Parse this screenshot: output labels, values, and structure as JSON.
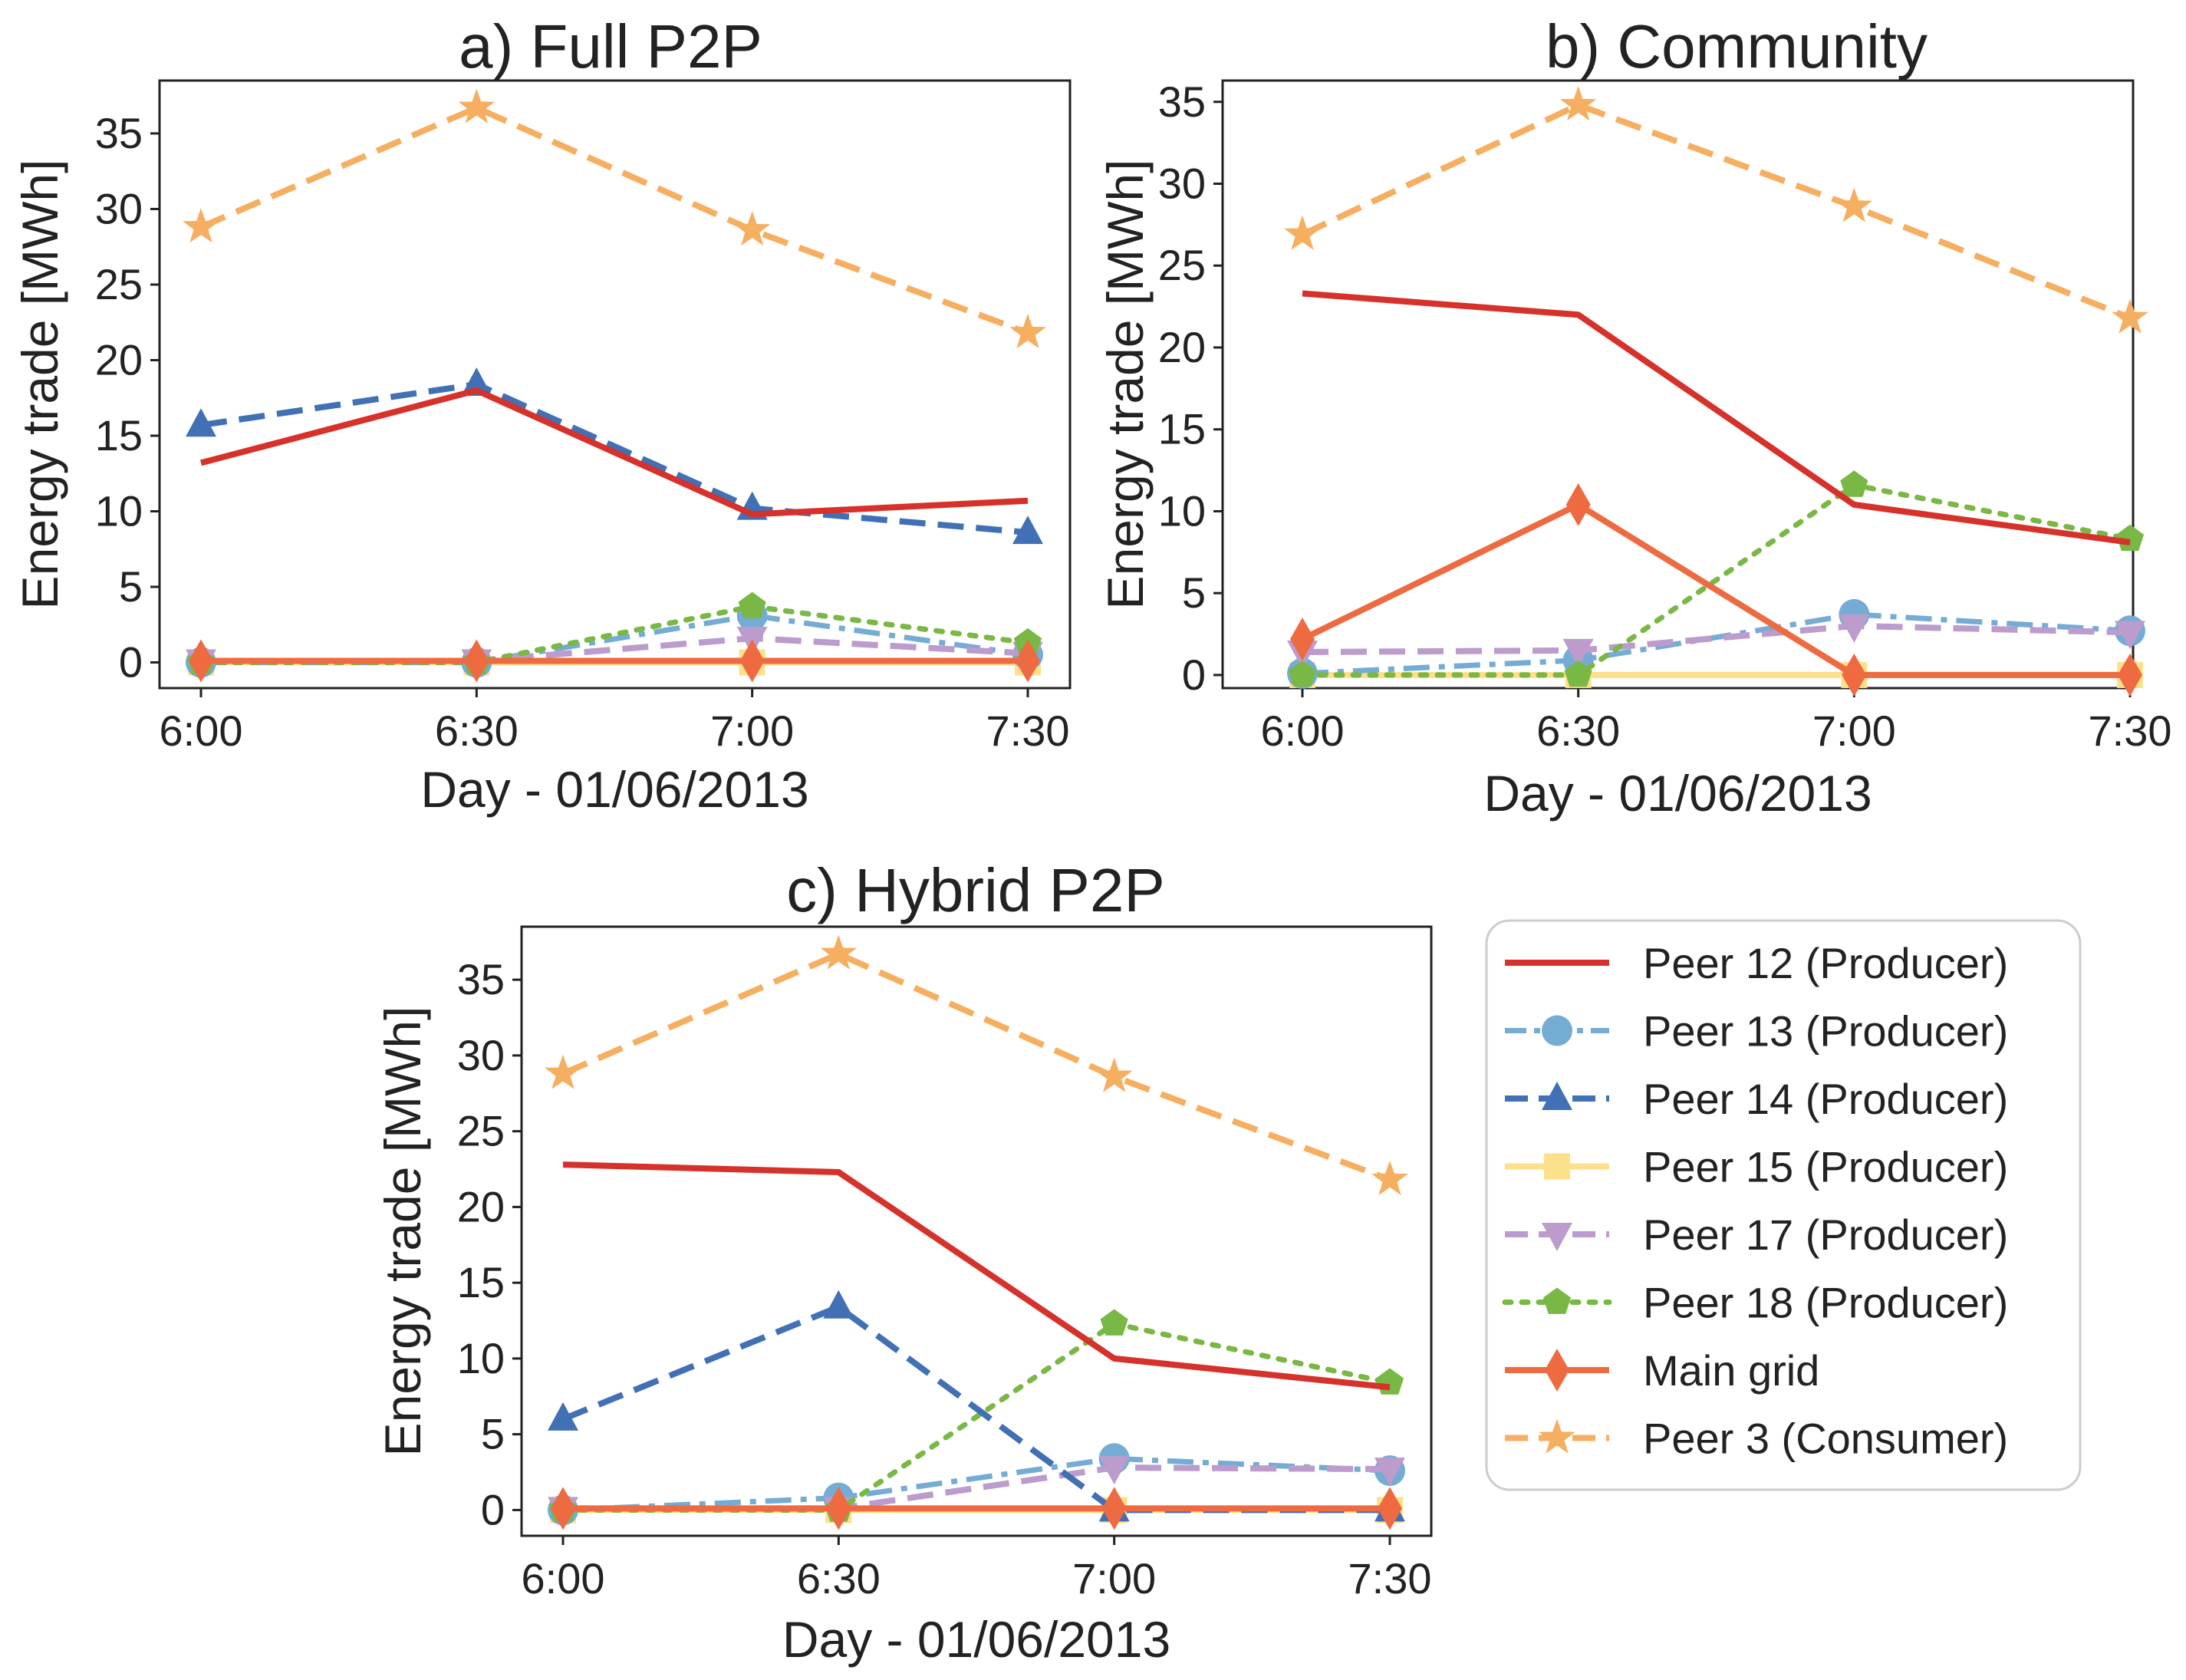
{
  "figure": {
    "legend_position": "bottom-right",
    "legend_border_color": "#cccccc"
  },
  "series_styles": [
    {
      "key": "p12",
      "name": "Peer 12 (Producer)",
      "color": "#d6312b",
      "dash": "solid",
      "marker": "none",
      "width": 8
    },
    {
      "key": "p13",
      "name": "Peer 13 (Producer)",
      "color": "#74acd4",
      "dash": "dashdot",
      "marker": "circle",
      "width": 7
    },
    {
      "key": "p14",
      "name": "Peer 14 (Producer)",
      "color": "#4170b5",
      "dash": "dashed",
      "marker": "triangle-up",
      "width": 8
    },
    {
      "key": "p15",
      "name": "Peer 15 (Producer)",
      "color": "#fde08b",
      "dash": "solid",
      "marker": "square",
      "width": 8
    },
    {
      "key": "p17",
      "name": "Peer 17 (Producer)",
      "color": "#bb9ccc",
      "dash": "dashed",
      "marker": "triangle-down",
      "width": 8
    },
    {
      "key": "p18",
      "name": "Peer 18 (Producer)",
      "color": "#79b844",
      "dash": "dotted",
      "marker": "pentagon",
      "width": 7
    },
    {
      "key": "grid",
      "name": "Main grid",
      "color": "#ee6a41",
      "dash": "solid",
      "marker": "diamond",
      "width": 8
    },
    {
      "key": "p3",
      "name": "Peer 3 (Consumer)",
      "color": "#f6ae60",
      "dash": "dashed",
      "marker": "star",
      "width": 8
    }
  ],
  "chart_data": [
    {
      "type": "line",
      "title": "a) Full P2P",
      "xlabel": "Day - 01/06/2013",
      "ylabel": "Energy trade [MWh]",
      "categories": [
        "6:00",
        "6:30",
        "7:00",
        "7:30"
      ],
      "ylim": [
        -1.7,
        38.5
      ],
      "yticks": [
        0,
        5,
        10,
        15,
        20,
        25,
        30,
        35
      ],
      "series": [
        {
          "key": "p15",
          "name": "Peer 15 (Producer)",
          "values": [
            0,
            0,
            0,
            0
          ]
        },
        {
          "key": "p13",
          "name": "Peer 13 (Producer)",
          "values": [
            0,
            0,
            3.1,
            0.5
          ]
        },
        {
          "key": "p17",
          "name": "Peer 17 (Producer)",
          "values": [
            0.1,
            0.1,
            1.6,
            0.6
          ]
        },
        {
          "key": "p18",
          "name": "Peer 18 (Producer)",
          "values": [
            0,
            0,
            3.7,
            1.3
          ]
        },
        {
          "key": "p14",
          "name": "Peer 14 (Producer)",
          "values": [
            15.7,
            18.4,
            10.2,
            8.6
          ]
        },
        {
          "key": "p12",
          "name": "Peer 12 (Producer)",
          "values": [
            13.2,
            18.0,
            9.8,
            10.7
          ]
        },
        {
          "key": "grid",
          "name": "Main grid",
          "values": [
            0.1,
            0.1,
            0.1,
            0.1
          ]
        },
        {
          "key": "p3",
          "name": "Peer 3 (Consumer)",
          "values": [
            28.8,
            36.7,
            28.6,
            21.8
          ]
        }
      ]
    },
    {
      "type": "line",
      "title": "b) Community",
      "xlabel": "Day - 01/06/2013",
      "ylabel": "Energy trade [MWh]",
      "categories": [
        "6:00",
        "6:30",
        "7:00",
        "7:30"
      ],
      "ylim": [
        -0.8,
        36.3
      ],
      "yticks": [
        0,
        5,
        10,
        15,
        20,
        25,
        30,
        35
      ],
      "series": [
        {
          "key": "p15",
          "name": "Peer 15 (Producer)",
          "values": [
            0,
            0,
            0,
            0
          ]
        },
        {
          "key": "p13",
          "name": "Peer 13 (Producer)",
          "values": [
            0.1,
            0.9,
            3.7,
            2.7
          ]
        },
        {
          "key": "p17",
          "name": "Peer 17 (Producer)",
          "values": [
            1.4,
            1.5,
            3.0,
            2.6
          ]
        },
        {
          "key": "p18",
          "name": "Peer 18 (Producer)",
          "values": [
            0,
            0,
            11.6,
            8.3
          ]
        },
        {
          "key": "p12",
          "name": "Peer 12 (Producer)",
          "values": [
            23.3,
            22.0,
            10.4,
            8.1
          ]
        },
        {
          "key": "grid",
          "name": "Main grid",
          "values": [
            2.2,
            10.4,
            0,
            0
          ]
        },
        {
          "key": "p3",
          "name": "Peer 3 (Consumer)",
          "values": [
            26.9,
            34.8,
            28.6,
            21.8
          ]
        }
      ]
    },
    {
      "type": "line",
      "title": "c) Hybrid P2P",
      "xlabel": "Day - 01/06/2013",
      "ylabel": "Energy trade [MWh]",
      "categories": [
        "6:00",
        "6:30",
        "7:00",
        "7:30"
      ],
      "ylim": [
        -1.7,
        38.5
      ],
      "yticks": [
        0,
        5,
        10,
        15,
        20,
        25,
        30,
        35
      ],
      "series": [
        {
          "key": "p15",
          "name": "Peer 15 (Producer)",
          "values": [
            0,
            0,
            0,
            0
          ]
        },
        {
          "key": "p13",
          "name": "Peer 13 (Producer)",
          "values": [
            0,
            0.8,
            3.4,
            2.6
          ]
        },
        {
          "key": "p17",
          "name": "Peer 17 (Producer)",
          "values": [
            0.1,
            0.1,
            2.8,
            2.7
          ]
        },
        {
          "key": "p18",
          "name": "Peer 18 (Producer)",
          "values": [
            0,
            0,
            12.3,
            8.4
          ]
        },
        {
          "key": "p14",
          "name": "Peer 14 (Producer)",
          "values": [
            6.0,
            13.4,
            0,
            0
          ]
        },
        {
          "key": "p12",
          "name": "Peer 12 (Producer)",
          "values": [
            22.8,
            22.3,
            10.0,
            8.1
          ]
        },
        {
          "key": "grid",
          "name": "Main grid",
          "values": [
            0.1,
            0.1,
            0.1,
            0.1
          ]
        },
        {
          "key": "p3",
          "name": "Peer 3 (Consumer)",
          "values": [
            28.8,
            36.7,
            28.6,
            21.8
          ]
        }
      ]
    }
  ]
}
